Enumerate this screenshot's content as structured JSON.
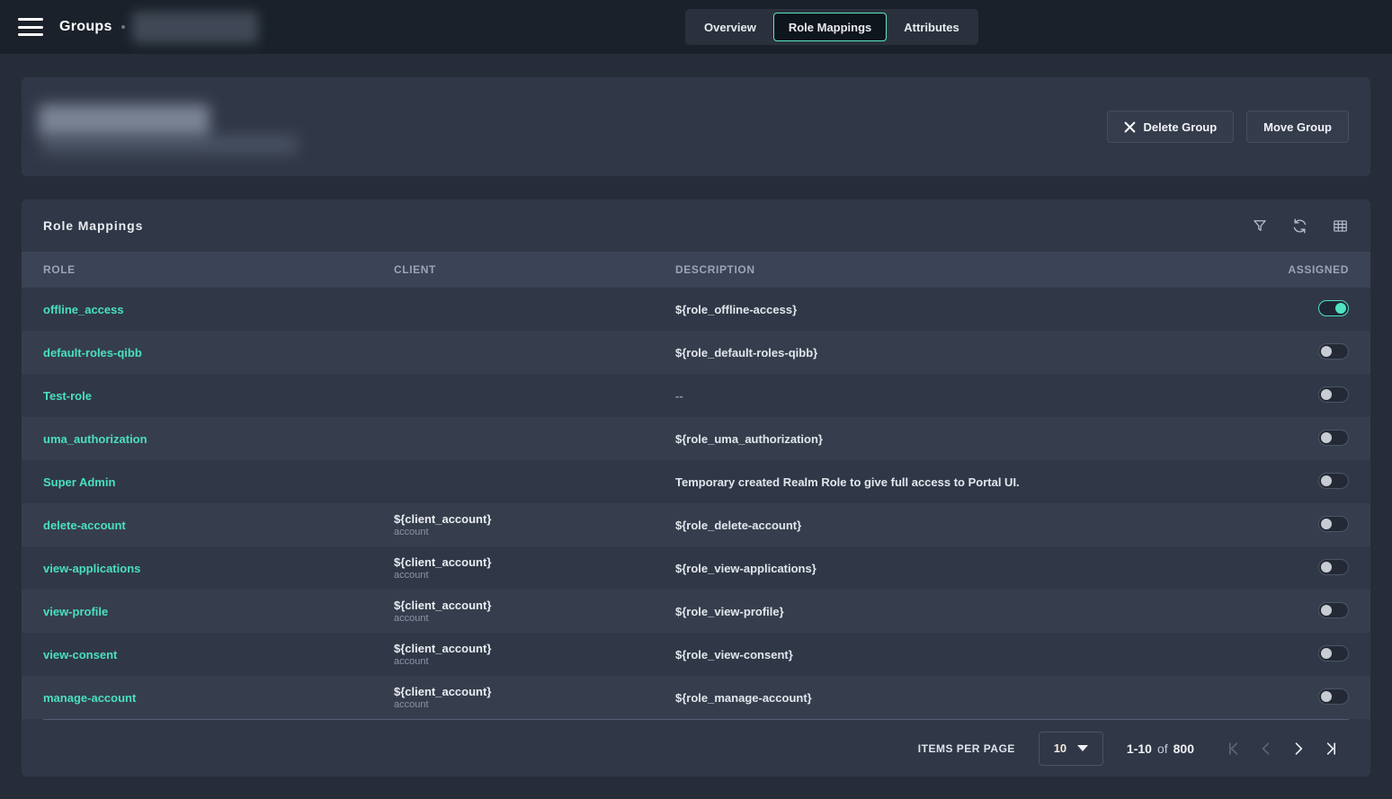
{
  "topbar": {
    "title": "Groups",
    "tabs": [
      {
        "label": "Overview",
        "active": false
      },
      {
        "label": "Role Mappings",
        "active": true
      },
      {
        "label": "Attributes",
        "active": false
      }
    ]
  },
  "group_header": {
    "delete_button": "Delete Group",
    "move_button": "Move Group"
  },
  "role_mappings": {
    "title": "Role Mappings",
    "toolbar_icons": [
      "filter-icon",
      "refresh-icon",
      "table-icon"
    ],
    "columns": [
      "ROLE",
      "CLIENT",
      "DESCRIPTION",
      "ASSIGNED"
    ],
    "rows": [
      {
        "role": "offline_access",
        "client": "",
        "client_id": "",
        "description": "${role_offline-access}",
        "assigned": true
      },
      {
        "role": "default-roles-qibb",
        "client": "",
        "client_id": "",
        "description": "${role_default-roles-qibb}",
        "assigned": false
      },
      {
        "role": "Test-role",
        "client": "",
        "client_id": "",
        "description": "--",
        "assigned": false
      },
      {
        "role": "uma_authorization",
        "client": "",
        "client_id": "",
        "description": "${role_uma_authorization}",
        "assigned": false
      },
      {
        "role": "Super Admin",
        "client": "",
        "client_id": "",
        "description": "Temporary created Realm Role to give full access to Portal UI.",
        "assigned": false
      },
      {
        "role": "delete-account",
        "client": "${client_account}",
        "client_id": "account",
        "description": "${role_delete-account}",
        "assigned": false
      },
      {
        "role": "view-applications",
        "client": "${client_account}",
        "client_id": "account",
        "description": "${role_view-applications}",
        "assigned": false
      },
      {
        "role": "view-profile",
        "client": "${client_account}",
        "client_id": "account",
        "description": "${role_view-profile}",
        "assigned": false
      },
      {
        "role": "view-consent",
        "client": "${client_account}",
        "client_id": "account",
        "description": "${role_view-consent}",
        "assigned": false
      },
      {
        "role": "manage-account",
        "client": "${client_account}",
        "client_id": "account",
        "description": "${role_manage-account}",
        "assigned": false
      }
    ],
    "pagination": {
      "items_per_page_label": "ITEMS PER PAGE",
      "page_size": "10",
      "range_text": "1-10",
      "of_text": "of",
      "total_text": "800"
    }
  },
  "colors": {
    "accent": "#4fe3c1",
    "link": "#4ae0bd"
  }
}
